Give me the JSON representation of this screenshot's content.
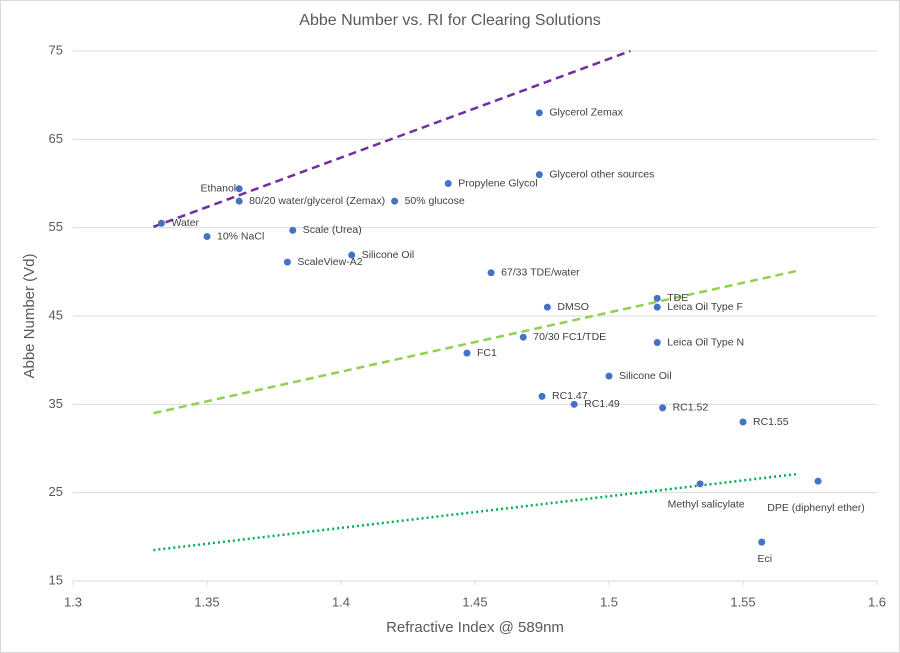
{
  "chart_data": {
    "type": "scatter",
    "title": "Abbe Number vs. RI for Clearing Solutions",
    "x_label": "Refractive Index @ 589nm",
    "y_label": "Abbe Number (Vd)",
    "color": "#4472c4",
    "labels": [
      "Water",
      "Ethanol",
      "80/20 water/glycerol (Zemax)",
      "10% NaCl",
      "Scale (Urea)",
      "ScaleView-A2",
      "Silicone Oil",
      "50% glucose",
      "Propylene Glycol",
      "Glycerol Zemax",
      "Glycerol other sources",
      "67/33 TDE/water",
      "DMSO",
      "70/30 FC1/TDE",
      "FC1",
      "TDE",
      "Leica Oil Type F",
      "Leica Oil Type N",
      "Silicone Oil",
      "RC1.47",
      "RC1.49",
      "RC1.52",
      "RC1.55",
      "Methyl salicylate",
      "DPE (diphenyl ether)",
      "Eci"
    ],
    "x": [
      1.333,
      1.362,
      1.362,
      1.35,
      1.382,
      1.38,
      1.404,
      1.42,
      1.44,
      1.474,
      1.474,
      1.456,
      1.477,
      1.468,
      1.447,
      1.518,
      1.518,
      1.518,
      1.5,
      1.475,
      1.487,
      1.52,
      1.55,
      1.534,
      1.578,
      1.557
    ],
    "values": [
      55.5,
      59.4,
      58.0,
      54.0,
      54.7,
      51.1,
      51.9,
      58.0,
      60.0,
      68.0,
      61.0,
      49.9,
      46.0,
      42.6,
      40.8,
      47.0,
      46.0,
      42.0,
      38.2,
      35.9,
      35.0,
      34.6,
      33.0,
      26.0,
      26.3,
      19.4
    ],
    "trendlines": [
      {
        "color": "#7030a0",
        "style": "dashed",
        "x": [
          1.33,
          1.508
        ],
        "y": [
          55.1,
          75
        ]
      },
      {
        "color": "#92d050",
        "style": "dashed",
        "x": [
          1.33,
          1.57
        ],
        "y": [
          34.0,
          50.1
        ]
      },
      {
        "color": "#00b050",
        "style": "dotted",
        "x": [
          1.33,
          1.57
        ],
        "y": [
          18.5,
          27.1
        ]
      }
    ],
    "xlim": [
      1.3,
      1.6
    ],
    "xticks": [
      1.3,
      1.35,
      1.4,
      1.45,
      1.5,
      1.55,
      1.6
    ],
    "ylim": [
      15,
      75
    ],
    "yticks": [
      15,
      25,
      35,
      45,
      55,
      65,
      75
    ],
    "grid": true
  }
}
